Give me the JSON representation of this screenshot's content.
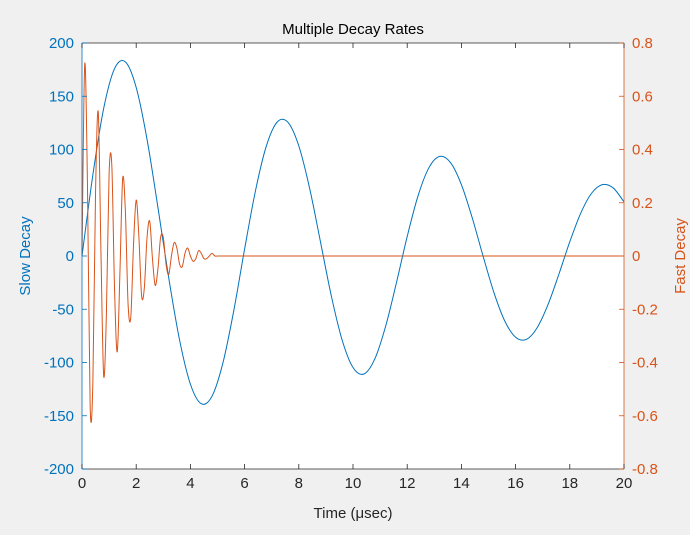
{
  "chart_data": {
    "type": "line",
    "title": "Multiple Decay Rates",
    "xlabel": "Time (μsec)",
    "xlim": [
      0,
      20
    ],
    "xticks": [
      0,
      2,
      4,
      6,
      8,
      10,
      12,
      14,
      16,
      18,
      20
    ],
    "yaxes": {
      "left": {
        "label": "Slow Decay",
        "lim": [
          -200,
          200
        ],
        "ticks": [
          -200,
          -150,
          -100,
          -50,
          0,
          50,
          100,
          150,
          200
        ],
        "color": "#0072bd"
      },
      "right": {
        "label": "Fast Decay",
        "lim": [
          -0.8,
          0.8
        ],
        "ticks": [
          -0.8,
          -0.6,
          -0.4,
          -0.2,
          0,
          0.2,
          0.4,
          0.6,
          0.8
        ],
        "color": "#d95319"
      }
    },
    "grid": false,
    "series": [
      {
        "axis": "left",
        "color": "#0072bd",
        "x": [
          0,
          0.4,
          0.8,
          1.2,
          1.6,
          2.0,
          2.4,
          2.8,
          3.2,
          3.6,
          4.0,
          4.4,
          4.8,
          5.2,
          5.6,
          6.0,
          6.4,
          6.8,
          7.2,
          7.6,
          8.0,
          8.4,
          8.8,
          9.2,
          9.6,
          10.0,
          10.4,
          10.8,
          11.2,
          11.6,
          12.0,
          12.4,
          12.8,
          13.2,
          13.6,
          14.0,
          14.4,
          14.8,
          15.2,
          15.6,
          16.0,
          16.4,
          16.8,
          17.2,
          17.6,
          18.0,
          18.4,
          18.8,
          19.2,
          19.6,
          20.0
        ],
        "y": [
          0,
          76.1,
          138.6,
          175.9,
          182.3,
          158.2,
          109.5,
          45.9,
          -20.5,
          -78.8,
          -120.3,
          -138.7,
          -131.5,
          -100.4,
          -51.4,
          6.5,
          61.1,
          103.1,
          125.7,
          125.5,
          103.4,
          63.5,
          13.3,
          -37.5,
          -79.0,
          -104.7,
          -110.8,
          -96.9,
          -66.3,
          -25.4,
          18.3,
          56.5,
          82.8,
          93.5,
          87.6,
          67.0,
          35.8,
          -0.1,
          -34.3,
          -61.0,
          -76.3,
          -78.2,
          -67.1,
          -45.4,
          -16.9,
          13.4,
          40.0,
          58.8,
          67.0,
          63.9,
          50.8
        ]
      },
      {
        "axis": "right",
        "color": "#d95319",
        "x": [
          0,
          0.1,
          0.2,
          0.3,
          0.4,
          0.5,
          0.6,
          0.7,
          0.8,
          0.9,
          1.0,
          1.1,
          1.2,
          1.3,
          1.4,
          1.5,
          1.6,
          1.7,
          1.8,
          1.9,
          2.0,
          2.1,
          2.2,
          2.3,
          2.4,
          2.5,
          2.6,
          2.7,
          2.8,
          2.9,
          3.0,
          3.1,
          3.2,
          3.3,
          3.4,
          3.5,
          3.6,
          3.7,
          3.8,
          3.9,
          4.0,
          4.1,
          4.2,
          4.3,
          4.4,
          4.5,
          4.6,
          4.7,
          4.8,
          4.9,
          5.0,
          5.1,
          5.2,
          5.3,
          5.4,
          5.5,
          5.6,
          5.7,
          5.8,
          5.9,
          6.0,
          6.2,
          6.4,
          6.6,
          6.8,
          7.0,
          7.2,
          7.4,
          7.6,
          7.8,
          8.0,
          8.2,
          8.4,
          8.6,
          8.8,
          9.0,
          9.2,
          9.4,
          9.6,
          9.8,
          10.0,
          10.5,
          11.0,
          12.0,
          13.0,
          14.0,
          15.0,
          16.0,
          17.0,
          18.0,
          19.0,
          20.0
        ],
        "y": [
          0,
          0.72,
          0.28,
          -0.56,
          -0.48,
          0.24,
          0.54,
          0.01,
          -0.45,
          -0.22,
          0.31,
          0.34,
          -0.12,
          -0.36,
          -0.06,
          0.29,
          0.17,
          -0.18,
          -0.23,
          0.04,
          0.21,
          0.07,
          -0.15,
          -0.12,
          0.07,
          0.13,
          -0.01,
          -0.11,
          -0.05,
          0.07,
          0.07,
          -0.03,
          -0.07,
          0.0,
          0.05,
          0.03,
          -0.03,
          -0.04,
          0.01,
          0.03,
          0.0,
          -0.02,
          -0.01,
          0.02,
          0.01,
          -0.01,
          -0.01,
          0.0,
          0.01,
          0.0,
          0.0,
          0.0,
          0.0,
          0.0,
          0.0,
          0.0,
          0.0,
          0.0,
          0.0,
          0.0,
          0.0,
          0.0,
          0.0,
          0.0,
          0.0,
          0.0,
          0.0,
          0.0,
          0.0,
          0.0,
          0.0,
          0.0,
          0.0,
          0.0,
          0.0,
          0.0,
          0.0,
          0.0,
          0.0,
          0.0,
          0.0,
          0.0,
          0.0,
          0.0,
          0.0,
          0.0,
          0.0,
          0.0,
          0.0,
          0.0,
          0.0,
          0.0
        ]
      }
    ]
  }
}
